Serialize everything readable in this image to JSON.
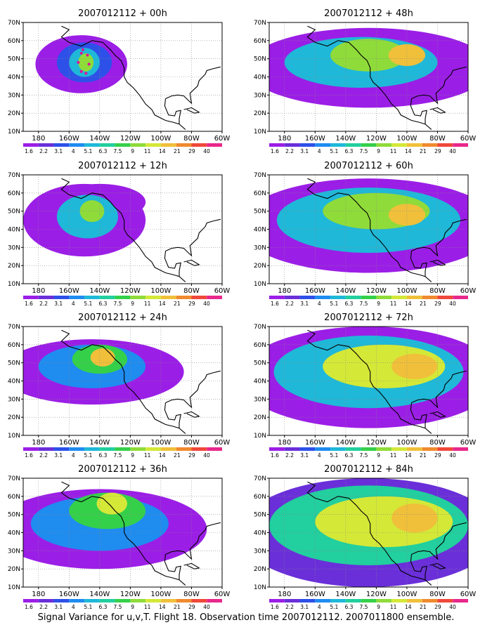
{
  "figure": {
    "caption": "Signal Variance for u,v,T. Flight 18. Observation time 2007012112. 2007011800 ensemble."
  },
  "axes": {
    "lat_ticks": [
      "70N",
      "60N",
      "50N",
      "40N",
      "30N",
      "20N",
      "10N"
    ],
    "lon_ticks": [
      "180",
      "160W",
      "140W",
      "120W",
      "100W",
      "80W",
      "60W"
    ]
  },
  "colorbar": {
    "labels": [
      "1.6",
      "2.2",
      "3.1",
      "4",
      "5.1",
      "6.3",
      "7.5",
      "9",
      "11",
      "14",
      "21",
      "29",
      "40"
    ],
    "colors": [
      "#9b1ee6",
      "#6a2fd9",
      "#2d50e8",
      "#1f8cf0",
      "#1fb8d8",
      "#22cf9e",
      "#35d04a",
      "#8fdb3a",
      "#d4e838",
      "#f0c03a",
      "#f08a2e",
      "#f0483a",
      "#e8288c"
    ]
  },
  "panels": [
    {
      "title": "2007012112 + 00h",
      "col": "left",
      "row": 1
    },
    {
      "title": "2007012112 + 12h",
      "col": "left",
      "row": 2
    },
    {
      "title": "2007012112 + 24h",
      "col": "left",
      "row": 3
    },
    {
      "title": "2007012112 + 36h",
      "col": "left",
      "row": 4
    },
    {
      "title": "2007012112 + 48h",
      "col": "right",
      "row": 1
    },
    {
      "title": "2007012112 + 60h",
      "col": "right",
      "row": 2
    },
    {
      "title": "2007012112 + 72h",
      "col": "right",
      "row": 3
    },
    {
      "title": "2007012112 + 84h",
      "col": "right",
      "row": 4
    }
  ],
  "fields": {
    "00h": {
      "background_level": -1,
      "blobs": [
        {
          "lon": -152,
          "lat": 47,
          "rx": 30,
          "ry": 16,
          "level": 0
        },
        {
          "lon": -150,
          "lat": 48,
          "rx": 18,
          "ry": 11,
          "level": 2
        },
        {
          "lon": -150,
          "lat": 48,
          "rx": 10,
          "ry": 8,
          "level": 4
        },
        {
          "lon": -149,
          "lat": 48,
          "rx": 5,
          "ry": 5,
          "level": 7
        }
      ]
    },
    "12h": {
      "background_level": -1,
      "blobs": [
        {
          "lon": -150,
          "lat": 45,
          "rx": 40,
          "ry": 20,
          "level": 0
        },
        {
          "lon": -140,
          "lat": 55,
          "rx": 30,
          "ry": 10,
          "level": 0
        },
        {
          "lon": -148,
          "lat": 47,
          "rx": 20,
          "ry": 12,
          "level": 4
        },
        {
          "lon": -145,
          "lat": 50,
          "rx": 8,
          "ry": 6,
          "level": 7
        }
      ]
    },
    "24h": {
      "background_level": -1,
      "blobs": [
        {
          "lon": -145,
          "lat": 45,
          "rx": 60,
          "ry": 18,
          "level": 0
        },
        {
          "lon": -145,
          "lat": 48,
          "rx": 35,
          "ry": 12,
          "level": 3
        },
        {
          "lon": -140,
          "lat": 52,
          "rx": 18,
          "ry": 8,
          "level": 6
        },
        {
          "lon": -138,
          "lat": 53,
          "rx": 8,
          "ry": 5,
          "level": 9
        }
      ]
    },
    "36h": {
      "background_level": -1,
      "blobs": [
        {
          "lon": -140,
          "lat": 42,
          "rx": 70,
          "ry": 22,
          "level": 0
        },
        {
          "lon": -140,
          "lat": 45,
          "rx": 45,
          "ry": 15,
          "level": 3
        },
        {
          "lon": -135,
          "lat": 52,
          "rx": 25,
          "ry": 10,
          "level": 6
        },
        {
          "lon": -132,
          "lat": 56,
          "rx": 10,
          "ry": 6,
          "level": 8
        }
      ]
    },
    "48h": {
      "background_level": -1,
      "blobs": [
        {
          "lon": -125,
          "lat": 45,
          "rx": 80,
          "ry": 22,
          "level": 0
        },
        {
          "lon": -130,
          "lat": 48,
          "rx": 50,
          "ry": 14,
          "level": 4
        },
        {
          "lon": -125,
          "lat": 52,
          "rx": 25,
          "ry": 9,
          "level": 7
        },
        {
          "lon": -100,
          "lat": 52,
          "rx": 12,
          "ry": 6,
          "level": 9
        }
      ]
    },
    "60h": {
      "background_level": -1,
      "blobs": [
        {
          "lon": -125,
          "lat": 42,
          "rx": 85,
          "ry": 26,
          "level": 0
        },
        {
          "lon": -125,
          "lat": 45,
          "rx": 60,
          "ry": 18,
          "level": 4
        },
        {
          "lon": -120,
          "lat": 50,
          "rx": 35,
          "ry": 10,
          "level": 7
        },
        {
          "lon": -100,
          "lat": 48,
          "rx": 12,
          "ry": 6,
          "level": 9
        }
      ]
    },
    "72h": {
      "background_level": -1,
      "blobs": [
        {
          "lon": -125,
          "lat": 42,
          "rx": 85,
          "ry": 28,
          "level": 0
        },
        {
          "lon": -125,
          "lat": 45,
          "rx": 62,
          "ry": 20,
          "level": 4
        },
        {
          "lon": -115,
          "lat": 48,
          "rx": 40,
          "ry": 12,
          "level": 8
        },
        {
          "lon": -95,
          "lat": 48,
          "rx": 15,
          "ry": 7,
          "level": 9
        }
      ]
    },
    "84h": {
      "background_level": -1,
      "blobs": [
        {
          "lon": -125,
          "lat": 40,
          "rx": 85,
          "ry": 30,
          "level": 1
        },
        {
          "lon": -125,
          "lat": 44,
          "rx": 65,
          "ry": 22,
          "level": 5
        },
        {
          "lon": -115,
          "lat": 46,
          "rx": 45,
          "ry": 14,
          "level": 8
        },
        {
          "lon": -95,
          "lat": 48,
          "rx": 15,
          "ry": 8,
          "level": 9
        }
      ]
    }
  }
}
